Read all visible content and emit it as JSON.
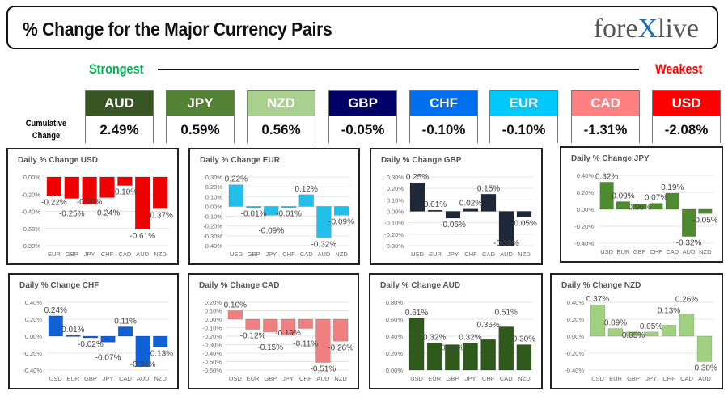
{
  "header": {
    "title": "% Change for the Major Currency Pairs",
    "logo_left": "fore",
    "logo_x": "X",
    "logo_right": "live"
  },
  "scale": {
    "strongest": "Strongest",
    "weakest": "Weakest"
  },
  "cumulative_label_1": "Cumulative",
  "cumulative_label_2": "Change",
  "currencies": [
    {
      "code": "AUD",
      "value": "2.49%",
      "color": "#375623"
    },
    {
      "code": "JPY",
      "value": "0.59%",
      "color": "#548235"
    },
    {
      "code": "NZD",
      "value": "0.56%",
      "color": "#a9d08e"
    },
    {
      "code": "GBP",
      "value": "-0.05%",
      "color": "#000066"
    },
    {
      "code": "CHF",
      "value": "-0.10%",
      "color": "#0070f0"
    },
    {
      "code": "EUR",
      "value": "-0.10%",
      "color": "#00c8f8"
    },
    {
      "code": "CAD",
      "value": "-1.31%",
      "color": "#ff8080"
    },
    {
      "code": "USD",
      "value": "-2.08%",
      "color": "#ff0000"
    }
  ],
  "chart_data": [
    {
      "type": "bar",
      "title": "Daily % Change USD",
      "color": "#ee0000",
      "categories": [
        "EUR",
        "GBP",
        "JPY",
        "CHF",
        "CAD",
        "AUD",
        "NZD"
      ],
      "values": [
        -0.22,
        -0.25,
        -0.32,
        -0.24,
        -0.1,
        -0.61,
        -0.37
      ],
      "labels": [
        "-0.22%",
        "-0.25%",
        "-0.32%",
        "-0.24%",
        "-0.10%",
        "-0.61%",
        "-0.37%"
      ],
      "ylim": [
        -0.8,
        0
      ],
      "step": 0.2,
      "ticks": [
        "0.00%",
        "-0.20%",
        "-0.40%",
        "-0.60%",
        "-0.80%"
      ]
    },
    {
      "type": "bar",
      "title": "Daily % Change EUR",
      "color": "#22c0e8",
      "categories": [
        "USD",
        "GBP",
        "JPY",
        "CHF",
        "CAD",
        "AUD",
        "NZD"
      ],
      "values": [
        0.22,
        -0.01,
        -0.09,
        -0.01,
        0.12,
        -0.32,
        -0.09
      ],
      "labels": [
        "0.22%",
        "-0.01%",
        "-0.09%",
        "-0.01%",
        "0.12%",
        "-0.32%",
        "-0.09%"
      ],
      "ylim": [
        -0.4,
        0.3
      ],
      "step": 0.1,
      "ticks": [
        "0.30%",
        "0.20%",
        "0.10%",
        "0.00%",
        "-0.10%",
        "-0.20%",
        "-0.30%",
        "-0.40%"
      ]
    },
    {
      "type": "bar",
      "title": "Daily % Change GBP",
      "color": "#1e2838",
      "categories": [
        "USD",
        "EUR",
        "JPY",
        "CHF",
        "CAD",
        "AUD",
        "NZD"
      ],
      "values": [
        0.25,
        0.01,
        -0.06,
        0.02,
        0.15,
        -0.3,
        -0.05
      ],
      "labels": [
        "0.25%",
        "0.01%",
        "-0.06%",
        "0.02%",
        "0.15%",
        "-0.30%",
        "-0.05%"
      ],
      "ylim": [
        -0.3,
        0.3
      ],
      "step": 0.1,
      "ticks": [
        "0.30%",
        "0.20%",
        "0.10%",
        "0.00%",
        "-0.10%",
        "-0.20%",
        "-0.30%"
      ]
    },
    {
      "type": "bar",
      "title": "Daily % Change JPY",
      "color": "#4e8a2e",
      "categories": [
        "USD",
        "EUR",
        "GBP",
        "CHF",
        "CAD",
        "AUD",
        "NZD"
      ],
      "values": [
        0.32,
        0.09,
        0.06,
        0.07,
        0.19,
        -0.32,
        -0.05
      ],
      "labels": [
        "0.32%",
        "0.09%",
        "0.06%",
        "0.07%",
        "0.19%",
        "-0.32%",
        "-0.05%"
      ],
      "ylim": [
        -0.4,
        0.4
      ],
      "step": 0.2,
      "ticks": [
        "0.40%",
        "0.20%",
        "0.00%",
        "-0.20%",
        "-0.40%"
      ]
    },
    {
      "type": "bar",
      "title": "Daily % Change CHF",
      "color": "#1060d8",
      "categories": [
        "USD",
        "EUR",
        "GBP",
        "JPY",
        "CAD",
        "AUD",
        "NZD"
      ],
      "values": [
        0.24,
        0.01,
        -0.02,
        -0.07,
        0.11,
        -0.36,
        -0.13
      ],
      "labels": [
        "0.24%",
        "0.01%",
        "-0.02%",
        "-0.07%",
        "0.11%",
        "-0.36%",
        "-0.13%"
      ],
      "ylim": [
        -0.4,
        0.4
      ],
      "step": 0.2,
      "ticks": [
        "0.40%",
        "0.20%",
        "0.00%",
        "-0.20%",
        "-0.40%"
      ]
    },
    {
      "type": "bar",
      "title": "Daily % Change CAD",
      "color": "#f08080",
      "categories": [
        "USD",
        "EUR",
        "GBP",
        "JPY",
        "CHF",
        "AUD",
        "NZD"
      ],
      "values": [
        0.1,
        -0.12,
        -0.15,
        -0.19,
        -0.11,
        -0.51,
        -0.26
      ],
      "labels": [
        "0.10%",
        "-0.12%",
        "-0.15%",
        "-0.19%",
        "-0.11%",
        "-0.51%",
        "-0.26%"
      ],
      "ylim": [
        -0.6,
        0.2
      ],
      "step": 0.1,
      "ticks": [
        "0.20%",
        "0.10%",
        "0.00%",
        "-0.10%",
        "-0.20%",
        "-0.30%",
        "-0.40%",
        "-0.50%",
        "-0.60%"
      ]
    },
    {
      "type": "bar",
      "title": "Daily % Change AUD",
      "color": "#2f5a1c",
      "categories": [
        "USD",
        "EUR",
        "GBP",
        "JPY",
        "CHF",
        "CAD",
        "NZD"
      ],
      "values": [
        0.61,
        0.32,
        0.3,
        0.32,
        0.36,
        0.51,
        0.3
      ],
      "labels": [
        "0.61%",
        "0.32%",
        "0.30%",
        "0.32%",
        "0.36%",
        "0.51%",
        "0.30%"
      ],
      "ylim": [
        0,
        0.8
      ],
      "step": 0.2,
      "ticks": [
        "0.80%",
        "0.60%",
        "0.40%",
        "0.20%",
        "0.00%"
      ]
    },
    {
      "type": "bar",
      "title": "Daily % Change NZD",
      "color": "#a0d080",
      "categories": [
        "USD",
        "EUR",
        "GBP",
        "JPY",
        "CHF",
        "CAD",
        "AUD"
      ],
      "values": [
        0.37,
        0.09,
        0.05,
        0.05,
        0.13,
        0.26,
        -0.3
      ],
      "labels": [
        "0.37%",
        "0.09%",
        "0.05%",
        "0.05%",
        "0.13%",
        "0.26%",
        "-0.30%"
      ],
      "ylim": [
        -0.4,
        0.4
      ],
      "step": 0.2,
      "ticks": [
        "0.40%",
        "0.20%",
        "0.00%",
        "-0.20%",
        "-0.40%"
      ]
    }
  ]
}
